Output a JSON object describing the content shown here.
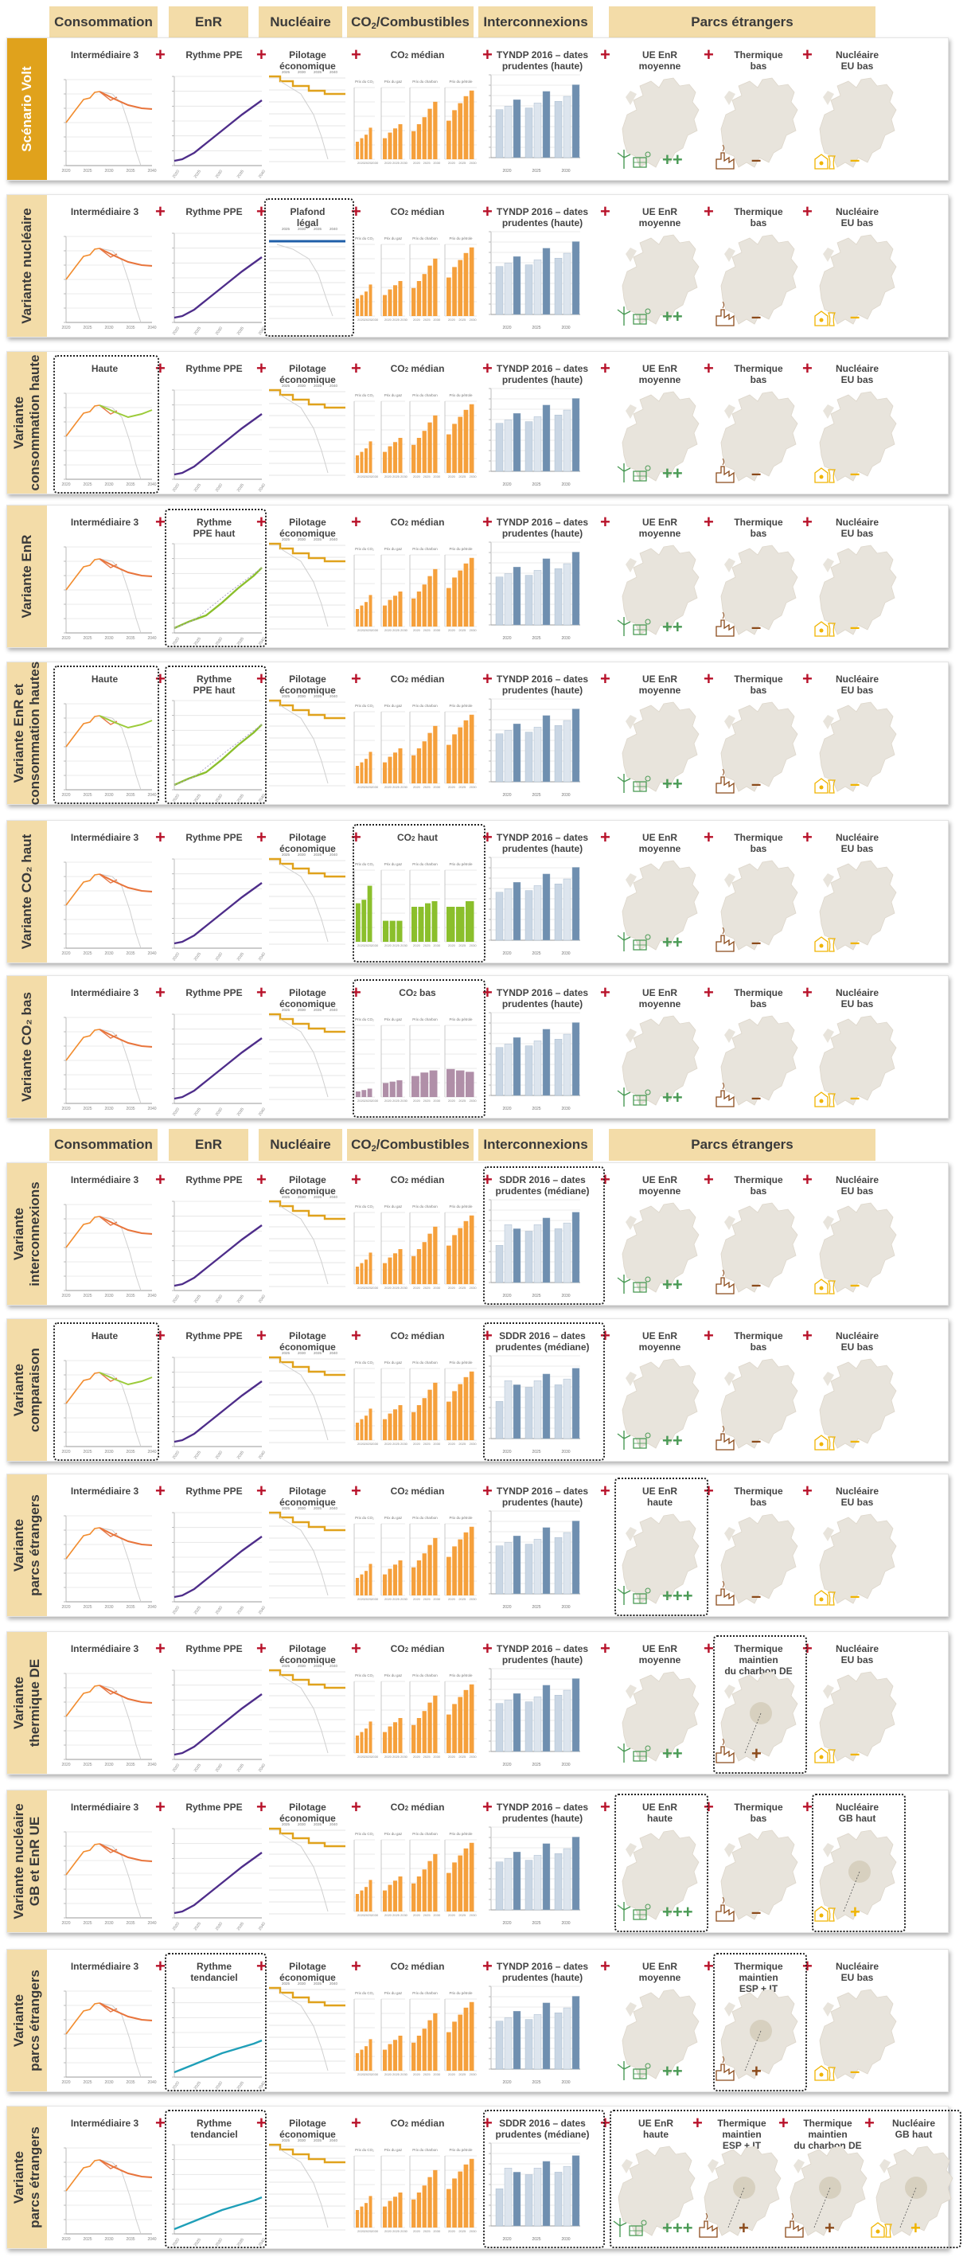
{
  "headers": {
    "consommation": "Consommation",
    "enr": "EnR",
    "nucleaire": "Nucléaire",
    "co2_main": "CO",
    "co2_sub": "2",
    "co2_tail": "/Combustibles",
    "interconnexions": "Interconnexions",
    "parcs": "Parcs étrangers"
  },
  "plus_sign": "+",
  "axis_labels": [
    "2020",
    "2025",
    "2030",
    "2035",
    "2040"
  ],
  "co2_panel_labels": [
    "Prix du CO₂",
    "Prix du gaz",
    "Prix du charbon",
    "Prix du pétrole"
  ],
  "interco_group_labels": [
    "2020",
    "2025",
    "2030"
  ],
  "colors": {
    "header_bg": "#f3dca8",
    "main_band": "#e0a21c",
    "plus_red": "#b8122a",
    "cons_orange": "#f28c2e",
    "cons_green": "#9ccb3a",
    "enr_purple": "#4e2d8a",
    "enr_green": "#8bbf2c",
    "enr_teal": "#1f9fb8",
    "nuc_gold": "#e0a21c",
    "nuc_blue": "#1f5fa8",
    "co2_orange": "#f5a03c",
    "co2_green": "#8bbf2c",
    "co2_purple": "#b08fa8",
    "interco_blue": "#6f8fb0",
    "interco_light": "#c9d6e4",
    "enr_sym_green": "#4a9a55",
    "thermique_brown": "#8b4a1a",
    "nuclear_yellow": "#f0b400",
    "map_grey": "#e8e4dc"
  },
  "section_headers_2": true,
  "rows": [
    {
      "band": [
        "Scénario Volt"
      ],
      "band_main": true,
      "cons": {
        "title": [
          "Intermédiaire 3"
        ],
        "variant": "base"
      },
      "enr": {
        "title": [
          "Rythme PPE"
        ],
        "variant": "ppe"
      },
      "nuc": {
        "title": [
          "Pilotage",
          "économique"
        ],
        "variant": "eco"
      },
      "co2": {
        "title": [
          "CO",
          "2",
          " médian"
        ],
        "variant": "median"
      },
      "interco": {
        "title": [
          "TYNDP 2016 – dates",
          "prudentes (haute)"
        ],
        "variant": "tyndp"
      },
      "parcs": [
        {
          "title": [
            "UE EnR",
            "moyenne"
          ],
          "icon": "enr-icon",
          "sym": "++"
        },
        {
          "title": [
            "Thermique",
            "bas"
          ],
          "icon": "thermique-icon",
          "sym": "–"
        },
        {
          "title": [
            "Nucléaire",
            "EU bas"
          ],
          "icon": "nuclear-plant-icon",
          "sym": "–"
        }
      ],
      "hl": []
    },
    {
      "band": [
        "Variante nucléaire"
      ],
      "band_main": false,
      "cons": {
        "title": [
          "Intermédiaire 3"
        ],
        "variant": "base"
      },
      "enr": {
        "title": [
          "Rythme PPE"
        ],
        "variant": "ppe"
      },
      "nuc": {
        "title": [
          "Plafond",
          "légal"
        ],
        "variant": "plafond"
      },
      "co2": {
        "title": [
          "CO",
          "2",
          " médian"
        ],
        "variant": "median"
      },
      "interco": {
        "title": [
          "TYNDP 2016 – dates",
          "prudentes (haute)"
        ],
        "variant": "tyndp"
      },
      "parcs": [
        {
          "title": [
            "UE EnR",
            "moyenne"
          ],
          "icon": "enr-icon",
          "sym": "++"
        },
        {
          "title": [
            "Thermique",
            "bas"
          ],
          "icon": "thermique-icon",
          "sym": "–"
        },
        {
          "title": [
            "Nucléaire",
            "EU bas"
          ],
          "icon": "nuclear-plant-icon",
          "sym": "–"
        }
      ],
      "hl": [
        "nuc"
      ]
    },
    {
      "band": [
        "Variante",
        "consommation haute"
      ],
      "band_main": false,
      "cons": {
        "title": [
          "Haute"
        ],
        "variant": "haute"
      },
      "enr": {
        "title": [
          "Rythme PPE"
        ],
        "variant": "ppe"
      },
      "nuc": {
        "title": [
          "Pilotage",
          "économique"
        ],
        "variant": "eco"
      },
      "co2": {
        "title": [
          "CO",
          "2",
          " médian"
        ],
        "variant": "median"
      },
      "interco": {
        "title": [
          "TYNDP 2016 – dates",
          "prudentes (haute)"
        ],
        "variant": "tyndp"
      },
      "parcs": [
        {
          "title": [
            "UE EnR",
            "moyenne"
          ],
          "icon": "enr-icon",
          "sym": "++"
        },
        {
          "title": [
            "Thermique",
            "bas"
          ],
          "icon": "thermique-icon",
          "sym": "–"
        },
        {
          "title": [
            "Nucléaire",
            "EU bas"
          ],
          "icon": "nuclear-plant-icon",
          "sym": "–"
        }
      ],
      "hl": [
        "cons"
      ]
    },
    {
      "band": [
        "Variante EnR"
      ],
      "band_main": false,
      "cons": {
        "title": [
          "Intermédiaire 3"
        ],
        "variant": "base"
      },
      "enr": {
        "title": [
          "Rythme",
          "PPE haut"
        ],
        "variant": "haut"
      },
      "nuc": {
        "title": [
          "Pilotage",
          "économique"
        ],
        "variant": "eco"
      },
      "co2": {
        "title": [
          "CO",
          "2",
          " médian"
        ],
        "variant": "median"
      },
      "interco": {
        "title": [
          "TYNDP 2016 – dates",
          "prudentes (haute)"
        ],
        "variant": "tyndp"
      },
      "parcs": [
        {
          "title": [
            "UE EnR",
            "moyenne"
          ],
          "icon": "enr-icon",
          "sym": "++"
        },
        {
          "title": [
            "Thermique",
            "bas"
          ],
          "icon": "thermique-icon",
          "sym": "–"
        },
        {
          "title": [
            "Nucléaire",
            "EU bas"
          ],
          "icon": "nuclear-plant-icon",
          "sym": "–"
        }
      ],
      "hl": [
        "enr"
      ]
    },
    {
      "band": [
        "Variante EnR et",
        "consommation hautes"
      ],
      "band_main": false,
      "cons": {
        "title": [
          "Haute"
        ],
        "variant": "haute"
      },
      "enr": {
        "title": [
          "Rythme",
          "PPE haut"
        ],
        "variant": "haut"
      },
      "nuc": {
        "title": [
          "Pilotage",
          "économique"
        ],
        "variant": "eco"
      },
      "co2": {
        "title": [
          "CO",
          "2",
          " médian"
        ],
        "variant": "median"
      },
      "interco": {
        "title": [
          "TYNDP 2016 – dates",
          "prudentes (haute)"
        ],
        "variant": "tyndp"
      },
      "parcs": [
        {
          "title": [
            "UE EnR",
            "moyenne"
          ],
          "icon": "enr-icon",
          "sym": "++"
        },
        {
          "title": [
            "Thermique",
            "bas"
          ],
          "icon": "thermique-icon",
          "sym": "–"
        },
        {
          "title": [
            "Nucléaire",
            "EU bas"
          ],
          "icon": "nuclear-plant-icon",
          "sym": "–"
        }
      ],
      "hl": [
        "cons",
        "enr"
      ]
    },
    {
      "band": [
        "Variante CO₂ haut"
      ],
      "band_main": false,
      "cons": {
        "title": [
          "Intermédiaire 3"
        ],
        "variant": "base"
      },
      "enr": {
        "title": [
          "Rythme PPE"
        ],
        "variant": "ppe"
      },
      "nuc": {
        "title": [
          "Pilotage",
          "économique"
        ],
        "variant": "eco"
      },
      "co2": {
        "title": [
          "CO",
          "2",
          " haut"
        ],
        "variant": "haut"
      },
      "interco": {
        "title": [
          "TYNDP 2016 – dates",
          "prudentes (haute)"
        ],
        "variant": "tyndp"
      },
      "parcs": [
        {
          "title": [
            "UE EnR",
            "moyenne"
          ],
          "icon": "enr-icon",
          "sym": "++"
        },
        {
          "title": [
            "Thermique",
            "bas"
          ],
          "icon": "thermique-icon",
          "sym": "–"
        },
        {
          "title": [
            "Nucléaire",
            "EU bas"
          ],
          "icon": "nuclear-plant-icon",
          "sym": "–"
        }
      ],
      "hl": [
        "co2"
      ]
    },
    {
      "band": [
        "Variante CO₂ bas"
      ],
      "band_main": false,
      "cons": {
        "title": [
          "Intermédiaire 3"
        ],
        "variant": "base"
      },
      "enr": {
        "title": [
          "Rythme PPE"
        ],
        "variant": "ppe"
      },
      "nuc": {
        "title": [
          "Pilotage",
          "économique"
        ],
        "variant": "eco"
      },
      "co2": {
        "title": [
          "CO",
          "2",
          " bas"
        ],
        "variant": "bas"
      },
      "interco": {
        "title": [
          "TYNDP 2016 – dates",
          "prudentes (haute)"
        ],
        "variant": "tyndp"
      },
      "parcs": [
        {
          "title": [
            "UE EnR",
            "moyenne"
          ],
          "icon": "enr-icon",
          "sym": "++"
        },
        {
          "title": [
            "Thermique",
            "bas"
          ],
          "icon": "thermique-icon",
          "sym": "–"
        },
        {
          "title": [
            "Nucléaire",
            "EU bas"
          ],
          "icon": "nuclear-plant-icon",
          "sym": "–"
        }
      ],
      "hl": [
        "co2"
      ]
    },
    {
      "band": [
        "Variante",
        "interconnexions"
      ],
      "band_main": false,
      "cons": {
        "title": [
          "Intermédiaire 3"
        ],
        "variant": "base"
      },
      "enr": {
        "title": [
          "Rythme PPE"
        ],
        "variant": "ppe"
      },
      "nuc": {
        "title": [
          "Pilotage",
          "économique"
        ],
        "variant": "eco"
      },
      "co2": {
        "title": [
          "CO",
          "2",
          " médian"
        ],
        "variant": "median"
      },
      "interco": {
        "title": [
          "SDDR 2016 – dates",
          "prudentes (médiane)"
        ],
        "variant": "sddr"
      },
      "parcs": [
        {
          "title": [
            "UE EnR",
            "moyenne"
          ],
          "icon": "enr-icon",
          "sym": "++"
        },
        {
          "title": [
            "Thermique",
            "bas"
          ],
          "icon": "thermique-icon",
          "sym": "–"
        },
        {
          "title": [
            "Nucléaire",
            "EU bas"
          ],
          "icon": "nuclear-plant-icon",
          "sym": "–"
        }
      ],
      "hl": [
        "interco"
      ]
    },
    {
      "band": [
        "Variante",
        "comparaison"
      ],
      "band_main": false,
      "cons": {
        "title": [
          "Haute"
        ],
        "variant": "haute"
      },
      "enr": {
        "title": [
          "Rythme PPE"
        ],
        "variant": "ppe"
      },
      "nuc": {
        "title": [
          "Pilotage",
          "économique"
        ],
        "variant": "eco"
      },
      "co2": {
        "title": [
          "CO",
          "2",
          " médian"
        ],
        "variant": "median"
      },
      "interco": {
        "title": [
          "SDDR 2016 – dates",
          "prudentes (médiane)"
        ],
        "variant": "sddr"
      },
      "parcs": [
        {
          "title": [
            "UE EnR",
            "moyenne"
          ],
          "icon": "enr-icon",
          "sym": "++"
        },
        {
          "title": [
            "Thermique",
            "bas"
          ],
          "icon": "thermique-icon",
          "sym": "–"
        },
        {
          "title": [
            "Nucléaire",
            "EU bas"
          ],
          "icon": "nuclear-plant-icon",
          "sym": "–"
        }
      ],
      "hl": [
        "cons",
        "interco"
      ]
    },
    {
      "band": [
        "Variante",
        "parcs étrangers"
      ],
      "band_main": false,
      "cons": {
        "title": [
          "Intermédiaire 3"
        ],
        "variant": "base"
      },
      "enr": {
        "title": [
          "Rythme PPE"
        ],
        "variant": "ppe"
      },
      "nuc": {
        "title": [
          "Pilotage",
          "économique"
        ],
        "variant": "eco"
      },
      "co2": {
        "title": [
          "CO",
          "2",
          " médian"
        ],
        "variant": "median"
      },
      "interco": {
        "title": [
          "TYNDP 2016 – dates",
          "prudentes (haute)"
        ],
        "variant": "tyndp"
      },
      "parcs": [
        {
          "title": [
            "UE EnR",
            "haute"
          ],
          "icon": "enr-icon",
          "sym": "+++"
        },
        {
          "title": [
            "Thermique",
            "bas"
          ],
          "icon": "thermique-icon",
          "sym": "–"
        },
        {
          "title": [
            "Nucléaire",
            "EU bas"
          ],
          "icon": "nuclear-plant-icon",
          "sym": "–"
        }
      ],
      "hl": [
        "p0"
      ]
    },
    {
      "band": [
        "Variante",
        "thermique DE"
      ],
      "band_main": false,
      "cons": {
        "title": [
          "Intermédiaire 3"
        ],
        "variant": "base"
      },
      "enr": {
        "title": [
          "Rythme PPE"
        ],
        "variant": "ppe"
      },
      "nuc": {
        "title": [
          "Pilotage",
          "économique"
        ],
        "variant": "eco"
      },
      "co2": {
        "title": [
          "CO",
          "2",
          " médian"
        ],
        "variant": "median"
      },
      "interco": {
        "title": [
          "TYNDP 2016 – dates",
          "prudentes (haute)"
        ],
        "variant": "tyndp"
      },
      "parcs": [
        {
          "title": [
            "UE EnR",
            "moyenne"
          ],
          "icon": "enr-icon",
          "sym": "++"
        },
        {
          "title": [
            "Thermique",
            "maintien",
            "du charbon DE"
          ],
          "icon": "thermique-icon",
          "sym": "+"
        },
        {
          "title": [
            "Nucléaire",
            "EU bas"
          ],
          "icon": "nuclear-plant-icon",
          "sym": "–"
        }
      ],
      "hl": [
        "p1"
      ]
    },
    {
      "band": [
        "Variante nucléaire",
        "GB et EnR UE"
      ],
      "band_main": false,
      "cons": {
        "title": [
          "Intermédiaire 3"
        ],
        "variant": "base"
      },
      "enr": {
        "title": [
          "Rythme PPE"
        ],
        "variant": "ppe"
      },
      "nuc": {
        "title": [
          "Pilotage",
          "économique"
        ],
        "variant": "eco"
      },
      "co2": {
        "title": [
          "CO",
          "2",
          " médian"
        ],
        "variant": "median"
      },
      "interco": {
        "title": [
          "TYNDP 2016 – dates",
          "prudentes (haute)"
        ],
        "variant": "tyndp"
      },
      "parcs": [
        {
          "title": [
            "UE EnR",
            "haute"
          ],
          "icon": "enr-icon",
          "sym": "+++"
        },
        {
          "title": [
            "Thermique",
            "bas"
          ],
          "icon": "thermique-icon",
          "sym": "–"
        },
        {
          "title": [
            "Nucléaire",
            "GB haut"
          ],
          "icon": "nuclear-plant-icon",
          "sym": "+"
        }
      ],
      "hl": [
        "p0",
        "p2"
      ]
    },
    {
      "band": [
        "Variante",
        "parcs étrangers"
      ],
      "band_main": false,
      "cons": {
        "title": [
          "Intermédiaire 3"
        ],
        "variant": "base"
      },
      "enr": {
        "title": [
          "Rythme",
          "tendanciel"
        ],
        "variant": "tend"
      },
      "nuc": {
        "title": [
          "Pilotage",
          "économique"
        ],
        "variant": "eco"
      },
      "co2": {
        "title": [
          "CO",
          "2",
          " médian"
        ],
        "variant": "median"
      },
      "interco": {
        "title": [
          "TYNDP 2016 – dates",
          "prudentes (haute)"
        ],
        "variant": "tyndp"
      },
      "parcs": [
        {
          "title": [
            "UE EnR",
            "moyenne"
          ],
          "icon": "enr-icon",
          "sym": "++"
        },
        {
          "title": [
            "Thermique",
            "maintien",
            "ESP + IT"
          ],
          "icon": "thermique-icon",
          "sym": "+"
        },
        {
          "title": [
            "Nucléaire",
            "EU bas"
          ],
          "icon": "nuclear-plant-icon",
          "sym": "–"
        }
      ],
      "hl": [
        "enr",
        "p1"
      ]
    },
    {
      "band": [
        "Variante",
        "parcs étrangers"
      ],
      "band_main": false,
      "four": true,
      "cons": {
        "title": [
          "Intermédiaire 3"
        ],
        "variant": "base"
      },
      "enr": {
        "title": [
          "Rythme",
          "tendanciel"
        ],
        "variant": "tend"
      },
      "nuc": {
        "title": [
          "Pilotage",
          "économique"
        ],
        "variant": "eco"
      },
      "co2": {
        "title": [
          "CO",
          "2",
          " médian"
        ],
        "variant": "median"
      },
      "interco": {
        "title": [
          "SDDR 2016 – dates",
          "prudentes (médiane)"
        ],
        "variant": "sddr"
      },
      "parcs": [
        {
          "title": [
            "UE EnR",
            "haute"
          ],
          "icon": "enr-icon",
          "sym": "+++"
        },
        {
          "title": [
            "Thermique",
            "maintien",
            "ESP + IT"
          ],
          "icon": "thermique-icon",
          "sym": "+"
        },
        {
          "title": [
            "Thermique",
            "maintien",
            "du charbon DE"
          ],
          "icon": "thermique-icon",
          "sym": "+"
        },
        {
          "title": [
            "Nucléaire",
            "GB haut"
          ],
          "icon": "nuclear-plant-icon",
          "sym": "+"
        }
      ],
      "hl": [
        "enr",
        "interco",
        "pall"
      ]
    }
  ]
}
